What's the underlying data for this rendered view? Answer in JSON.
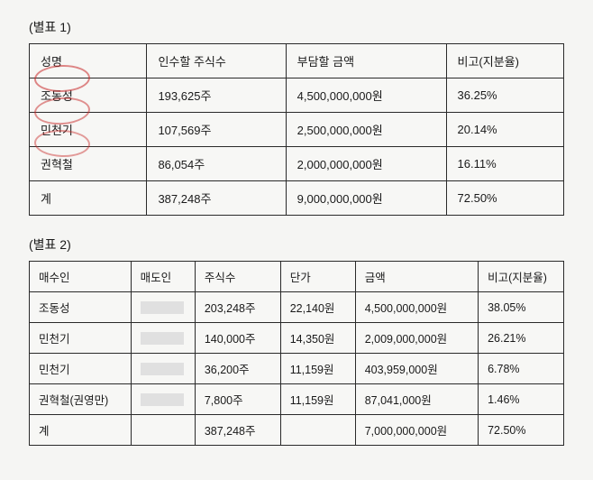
{
  "table1": {
    "label": "(별표 1)",
    "columns": [
      "성명",
      "인수할 주식수",
      "부담할 금액",
      "비고(지분율)"
    ],
    "rows": [
      {
        "name": "조동성",
        "shares": "193,625주",
        "amount": "4,500,000,000원",
        "ratio": "36.25%"
      },
      {
        "name": "민천기",
        "shares": "107,569주",
        "amount": "2,500,000,000원",
        "ratio": "20.14%"
      },
      {
        "name": "권혁철",
        "shares": "86,054주",
        "amount": "2,000,000,000원",
        "ratio": "16.11%"
      },
      {
        "name": "계",
        "shares": "387,248주",
        "amount": "9,000,000,000원",
        "ratio": "72.50%"
      }
    ],
    "col_widths": [
      "22%",
      "26%",
      "30%",
      "22%"
    ]
  },
  "table2": {
    "label": "(별표 2)",
    "columns": [
      "매수인",
      "매도인",
      "주식수",
      "단가",
      "금액",
      "비고(지분율)"
    ],
    "rows": [
      {
        "buyer": "조동성",
        "seller_redacted": true,
        "shares": "203,248주",
        "price": "22,140원",
        "amount": "4,500,000,000원",
        "ratio": "38.05%"
      },
      {
        "buyer": "민천기",
        "seller_redacted": true,
        "shares": "140,000주",
        "price": "14,350원",
        "amount": "2,009,000,000원",
        "ratio": "26.21%"
      },
      {
        "buyer": "민천기",
        "seller_redacted": true,
        "shares": "36,200주",
        "price": "11,159원",
        "amount": "403,959,000원",
        "ratio": "6.78%"
      },
      {
        "buyer": "권혁철(권영만)",
        "seller_redacted": true,
        "shares": "7,800주",
        "price": "11,159원",
        "amount": "87,041,000원",
        "ratio": "1.46%"
      },
      {
        "buyer": "계",
        "seller_redacted": false,
        "seller": "",
        "shares": "387,248주",
        "price": "",
        "amount": "7,000,000,000원",
        "ratio": "72.50%"
      }
    ],
    "col_widths": [
      "19%",
      "12%",
      "16%",
      "14%",
      "23%",
      "16%"
    ]
  },
  "colors": {
    "background": "#f5f5f3",
    "table_bg": "#f7f7f5",
    "border": "#2a2a2a",
    "text": "#1a1a1a",
    "pen_mark": "rgba(200,40,40,0.55)",
    "redacted": "#e0e0e0"
  }
}
